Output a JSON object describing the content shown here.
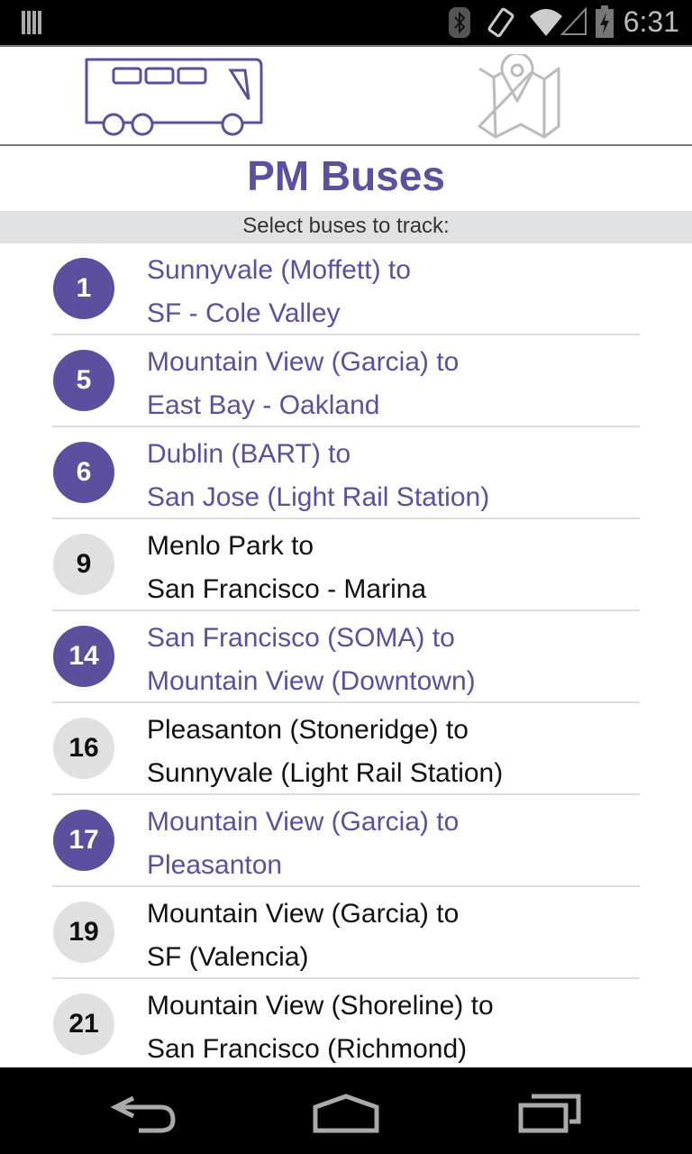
{
  "status_bar": {
    "time": "6:31",
    "icons": [
      "notification-icon",
      "bluetooth-icon",
      "vibrate-icon",
      "wifi-icon",
      "signal-icon",
      "battery-charging-icon"
    ]
  },
  "tabs": [
    {
      "name": "bus-tab",
      "icon": "bus-icon",
      "active": true
    },
    {
      "name": "map-tab",
      "icon": "map-pin-icon",
      "active": false
    }
  ],
  "page": {
    "title": "PM Buses",
    "subtitle": "Select buses to track:"
  },
  "colors": {
    "accent": "#5b4f9e",
    "unselected_badge": "#e0e0e0",
    "subheader_bg": "#e0e1e3"
  },
  "routes": [
    {
      "number": "1",
      "from": "Sunnyvale (Moffett) to",
      "to": "SF - Cole Valley",
      "selected": true
    },
    {
      "number": "5",
      "from": "Mountain View (Garcia) to",
      "to": "East Bay - Oakland",
      "selected": true
    },
    {
      "number": "6",
      "from": "Dublin (BART) to",
      "to": "San Jose (Light Rail Station)",
      "selected": true
    },
    {
      "number": "9",
      "from": "Menlo Park to",
      "to": "San Francisco - Marina",
      "selected": false
    },
    {
      "number": "14",
      "from": "San Francisco (SOMA) to",
      "to": "Mountain View (Downtown)",
      "selected": true
    },
    {
      "number": "16",
      "from": "Pleasanton (Stoneridge) to",
      "to": "Sunnyvale (Light Rail Station)",
      "selected": false
    },
    {
      "number": "17",
      "from": "Mountain View (Garcia) to",
      "to": "Pleasanton",
      "selected": true
    },
    {
      "number": "19",
      "from": "Mountain View (Garcia) to",
      "to": "SF (Valencia)",
      "selected": false
    },
    {
      "number": "21",
      "from": "Mountain View (Shoreline) to",
      "to": "San Francisco (Richmond)",
      "selected": false
    }
  ],
  "nav_bar": [
    "back-icon",
    "home-icon",
    "recents-icon"
  ]
}
